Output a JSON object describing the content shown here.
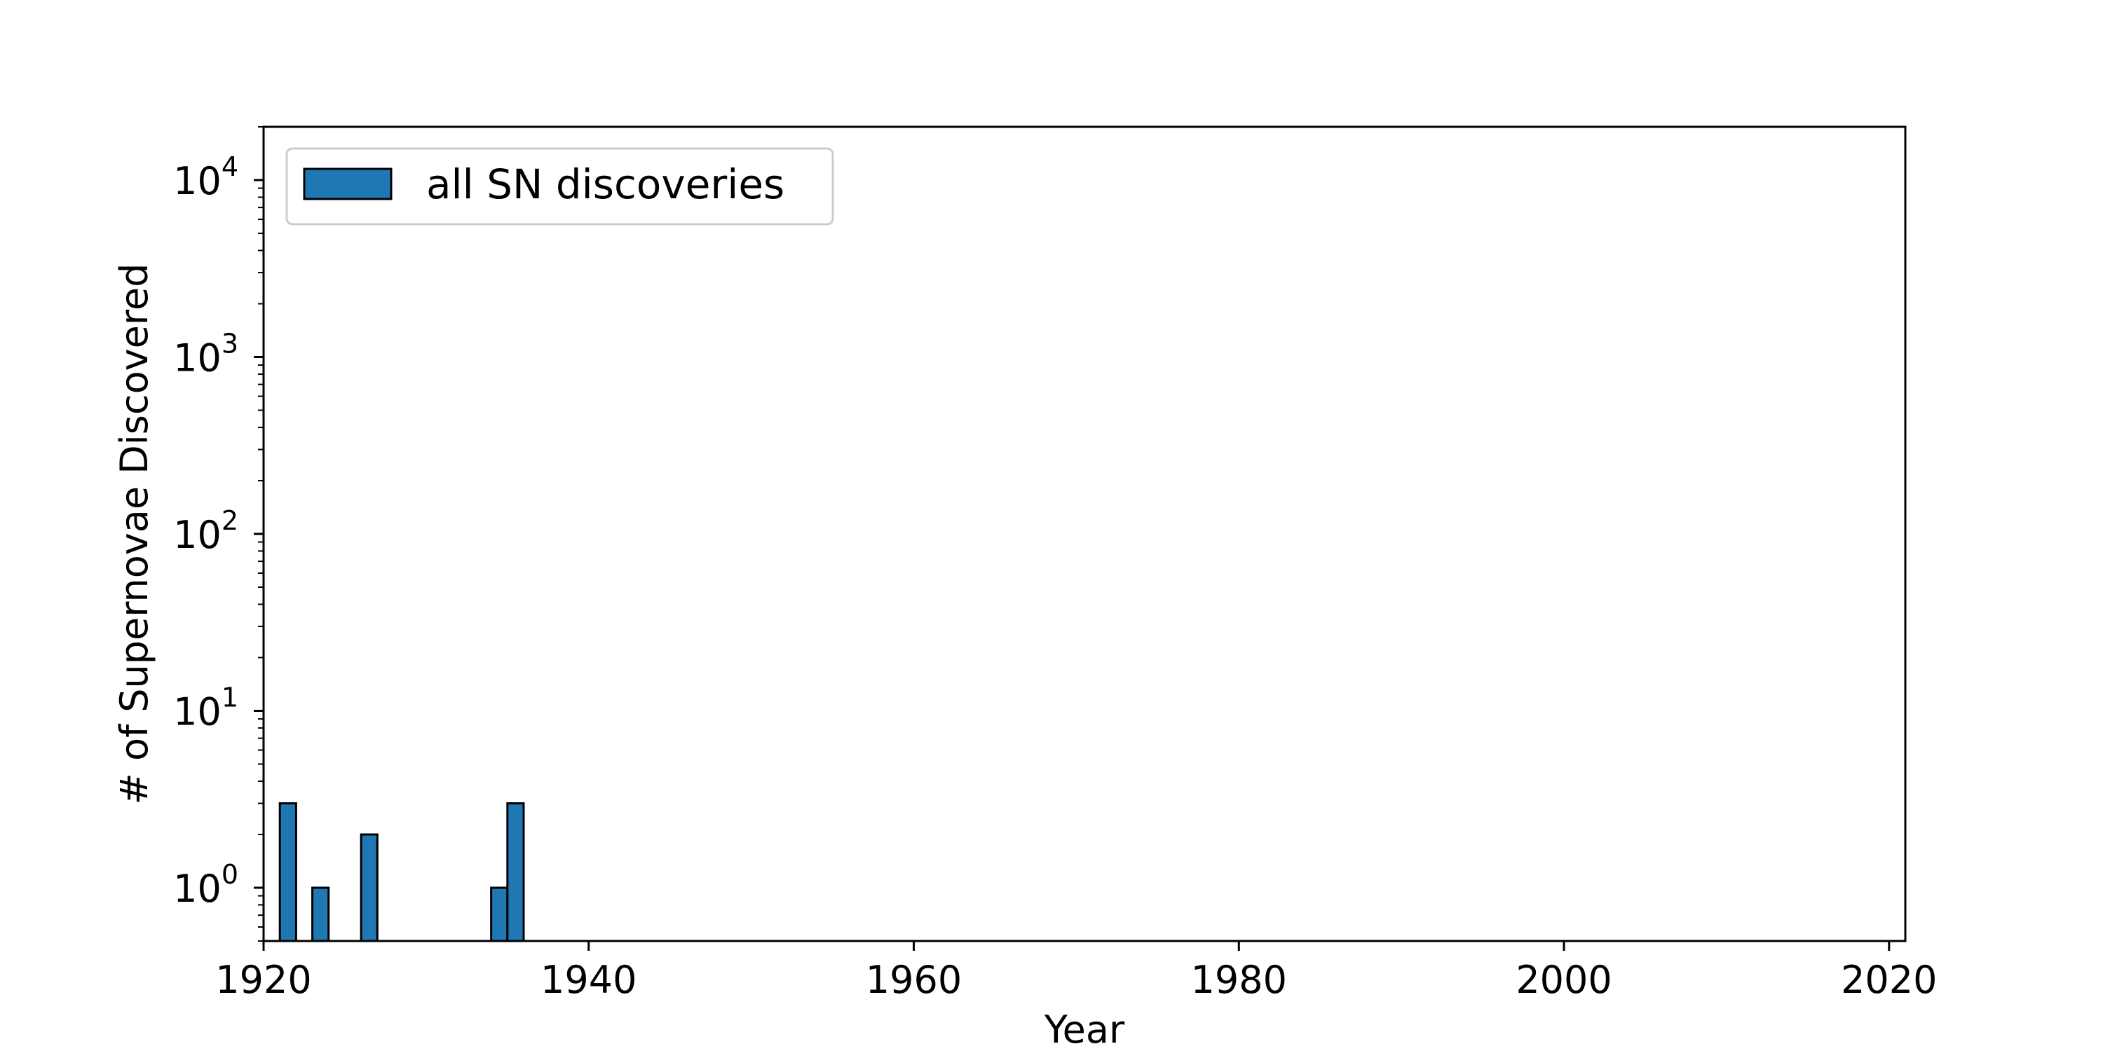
{
  "chart_data": {
    "type": "bar",
    "scale_y": "log",
    "xlabel": "Year",
    "ylabel": "# of Supernovae Discovered",
    "xlim": [
      1920,
      2021
    ],
    "ylim": [
      0.5,
      20000
    ],
    "x_ticks": [
      1920,
      1940,
      1960,
      1980,
      2000,
      2020
    ],
    "y_ticks": [
      {
        "value": 1,
        "base": "10",
        "exp": "0"
      },
      {
        "value": 10,
        "base": "10",
        "exp": "1"
      },
      {
        "value": 100,
        "base": "10",
        "exp": "2"
      },
      {
        "value": 1000,
        "base": "10",
        "exp": "3"
      },
      {
        "value": 10000,
        "base": "10",
        "exp": "4"
      }
    ],
    "bin_width": 1,
    "grid": false,
    "legend": {
      "position": "top-left"
    },
    "series": [
      {
        "name": "all SN discoveries",
        "color": "#1f77b4",
        "edge_color": "#000000",
        "bins": [
          {
            "year": 1921,
            "count": 3
          },
          {
            "year": 1923,
            "count": 1
          },
          {
            "year": 1926,
            "count": 2
          },
          {
            "year": 1934,
            "count": 1
          },
          {
            "year": 1935,
            "count": 3
          }
        ]
      }
    ]
  }
}
